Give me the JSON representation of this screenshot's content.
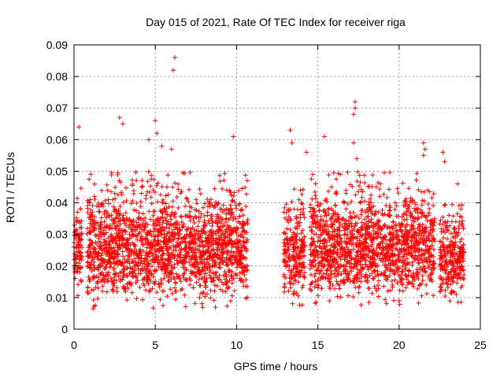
{
  "chart_data": {
    "type": "scatter",
    "title": "Day 015 of 2021, Rate Of TEC Index for receiver riga",
    "xlabel": "GPS time / hours",
    "ylabel": "ROTI / TECUs",
    "xlim": [
      0,
      25
    ],
    "ylim": [
      0,
      0.09
    ],
    "x_ticks": [
      "0",
      "5",
      "10",
      "15",
      "20",
      "25"
    ],
    "y_ticks": [
      "0",
      "0.01",
      "0.02",
      "0.03",
      "0.04",
      "0.05",
      "0.06",
      "0.07",
      "0.08",
      "0.09"
    ],
    "grid": true,
    "marker": "plus",
    "color": "#ff0000",
    "data_segments": [
      {
        "x_start": 0.0,
        "x_end": 0.5,
        "y_min": 0.01,
        "y_max": 0.045
      },
      {
        "x_start": 0.8,
        "x_end": 10.7,
        "y_min": 0.006,
        "y_max": 0.05
      },
      {
        "x_start": 12.9,
        "x_end": 14.2,
        "y_min": 0.007,
        "y_max": 0.045
      },
      {
        "x_start": 14.5,
        "x_end": 22.2,
        "y_min": 0.007,
        "y_max": 0.05
      },
      {
        "x_start": 22.5,
        "x_end": 24.0,
        "y_min": 0.008,
        "y_max": 0.04
      }
    ],
    "notable_points": [
      {
        "x": 0.3,
        "y": 0.064
      },
      {
        "x": 2.8,
        "y": 0.067
      },
      {
        "x": 3.0,
        "y": 0.065
      },
      {
        "x": 5.0,
        "y": 0.066
      },
      {
        "x": 5.1,
        "y": 0.062
      },
      {
        "x": 4.6,
        "y": 0.06
      },
      {
        "x": 5.4,
        "y": 0.058
      },
      {
        "x": 6.2,
        "y": 0.086
      },
      {
        "x": 6.1,
        "y": 0.082
      },
      {
        "x": 6.0,
        "y": 0.057
      },
      {
        "x": 9.8,
        "y": 0.061
      },
      {
        "x": 13.3,
        "y": 0.063
      },
      {
        "x": 13.4,
        "y": 0.059
      },
      {
        "x": 14.3,
        "y": 0.056
      },
      {
        "x": 15.4,
        "y": 0.061
      },
      {
        "x": 17.3,
        "y": 0.072
      },
      {
        "x": 17.3,
        "y": 0.07
      },
      {
        "x": 17.2,
        "y": 0.068
      },
      {
        "x": 17.2,
        "y": 0.059
      },
      {
        "x": 17.4,
        "y": 0.054
      },
      {
        "x": 21.5,
        "y": 0.059
      },
      {
        "x": 21.6,
        "y": 0.057
      },
      {
        "x": 21.5,
        "y": 0.055
      },
      {
        "x": 22.7,
        "y": 0.056
      },
      {
        "x": 22.8,
        "y": 0.053
      },
      {
        "x": 23.6,
        "y": 0.046
      }
    ]
  }
}
